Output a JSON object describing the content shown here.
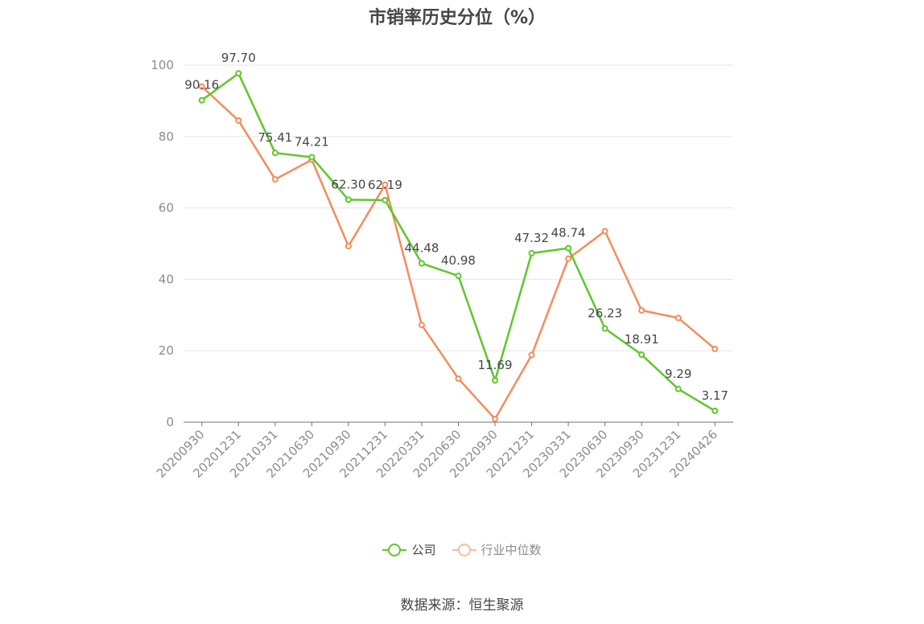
{
  "chart_data": {
    "type": "line",
    "title": "市销率历史分位（%）",
    "categories": [
      "20200930",
      "20201231",
      "20210331",
      "20210630",
      "20210930",
      "20211231",
      "20220331",
      "20220630",
      "20220930",
      "20221231",
      "20230331",
      "20230630",
      "20230930",
      "20231231",
      "20240426"
    ],
    "ylim": [
      0,
      100
    ],
    "yticks": [
      0,
      20,
      40,
      60,
      80,
      100
    ],
    "grid": true,
    "legend_position": "bottom",
    "series": [
      {
        "name": "公司",
        "color": "#5ec72b",
        "values": [
          90.16,
          97.7,
          75.41,
          74.21,
          62.3,
          62.19,
          44.48,
          40.98,
          11.69,
          47.32,
          48.74,
          26.23,
          18.91,
          9.29,
          3.17
        ],
        "labels": [
          "90.16",
          "97.70",
          "75.41",
          "74.21",
          "62.30",
          "62.19",
          "44.48",
          "40.98",
          "11.69",
          "47.32",
          "48.74",
          "26.23",
          "18.91",
          "9.29",
          "3.17"
        ]
      },
      {
        "name": "行业中位数",
        "color": "#f38d5d",
        "values": [
          94.0,
          84.5,
          68.0,
          73.5,
          49.3,
          66.5,
          27.2,
          12.2,
          0.9,
          18.8,
          45.8,
          53.5,
          31.3,
          29.2,
          20.5
        ]
      }
    ]
  },
  "legend": {
    "items": [
      {
        "label": "公司",
        "color": "#5ec72b"
      },
      {
        "label": "行业中位数",
        "color": "#f8bca0"
      }
    ]
  },
  "source": "数据来源：恒生聚源"
}
